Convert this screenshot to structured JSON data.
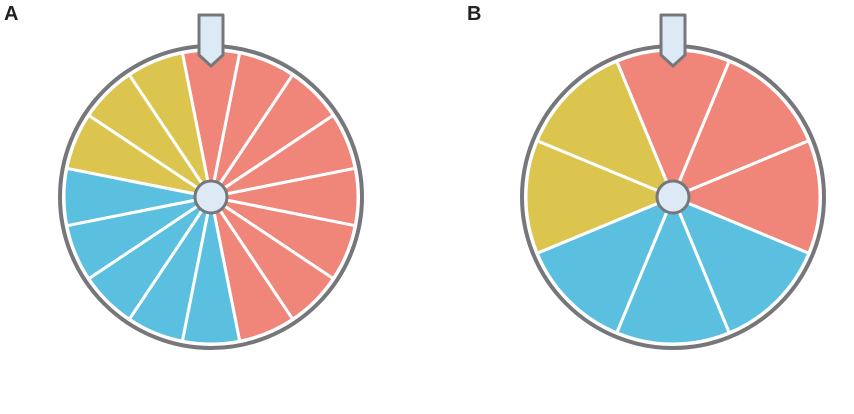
{
  "wheels": [
    {
      "label": "A",
      "segments": [
        "#f0857a",
        "#f0857a",
        "#f0857a",
        "#f0857a",
        "#f0857a",
        "#f0857a",
        "#f0857a",
        "#f0857a",
        "#5bc0e0",
        "#5bc0e0",
        "#5bc0e0",
        "#5bc0e0",
        "#5bc0e0",
        "#dcc54e",
        "#dcc54e",
        "#dcc54e"
      ]
    },
    {
      "label": "B",
      "segments": [
        "#f0857a",
        "#f0857a",
        "#f0857a",
        "#5bc0e0",
        "#5bc0e0",
        "#5bc0e0",
        "#dcc54e",
        "#dcc54e"
      ]
    }
  ]
}
